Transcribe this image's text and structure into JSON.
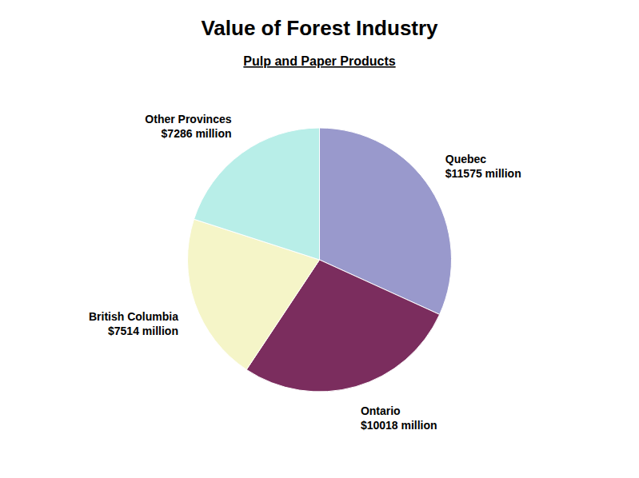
{
  "chart_data": {
    "type": "pie",
    "title": "Value of Forest Industry",
    "subtitle": "Pulp and Paper Products",
    "categories": [
      "Quebec",
      "Ontario",
      "British Columbia",
      "Other Provinces"
    ],
    "values": [
      11575,
      10018,
      7514,
      7286
    ],
    "value_labels": [
      "$11575 million",
      "$10018 million",
      "$7514 million",
      "$7286 million"
    ],
    "colors": [
      "#9999CC",
      "#7B2D5E",
      "#F5F5C8",
      "#B8EEE8"
    ],
    "data_labels": true
  }
}
